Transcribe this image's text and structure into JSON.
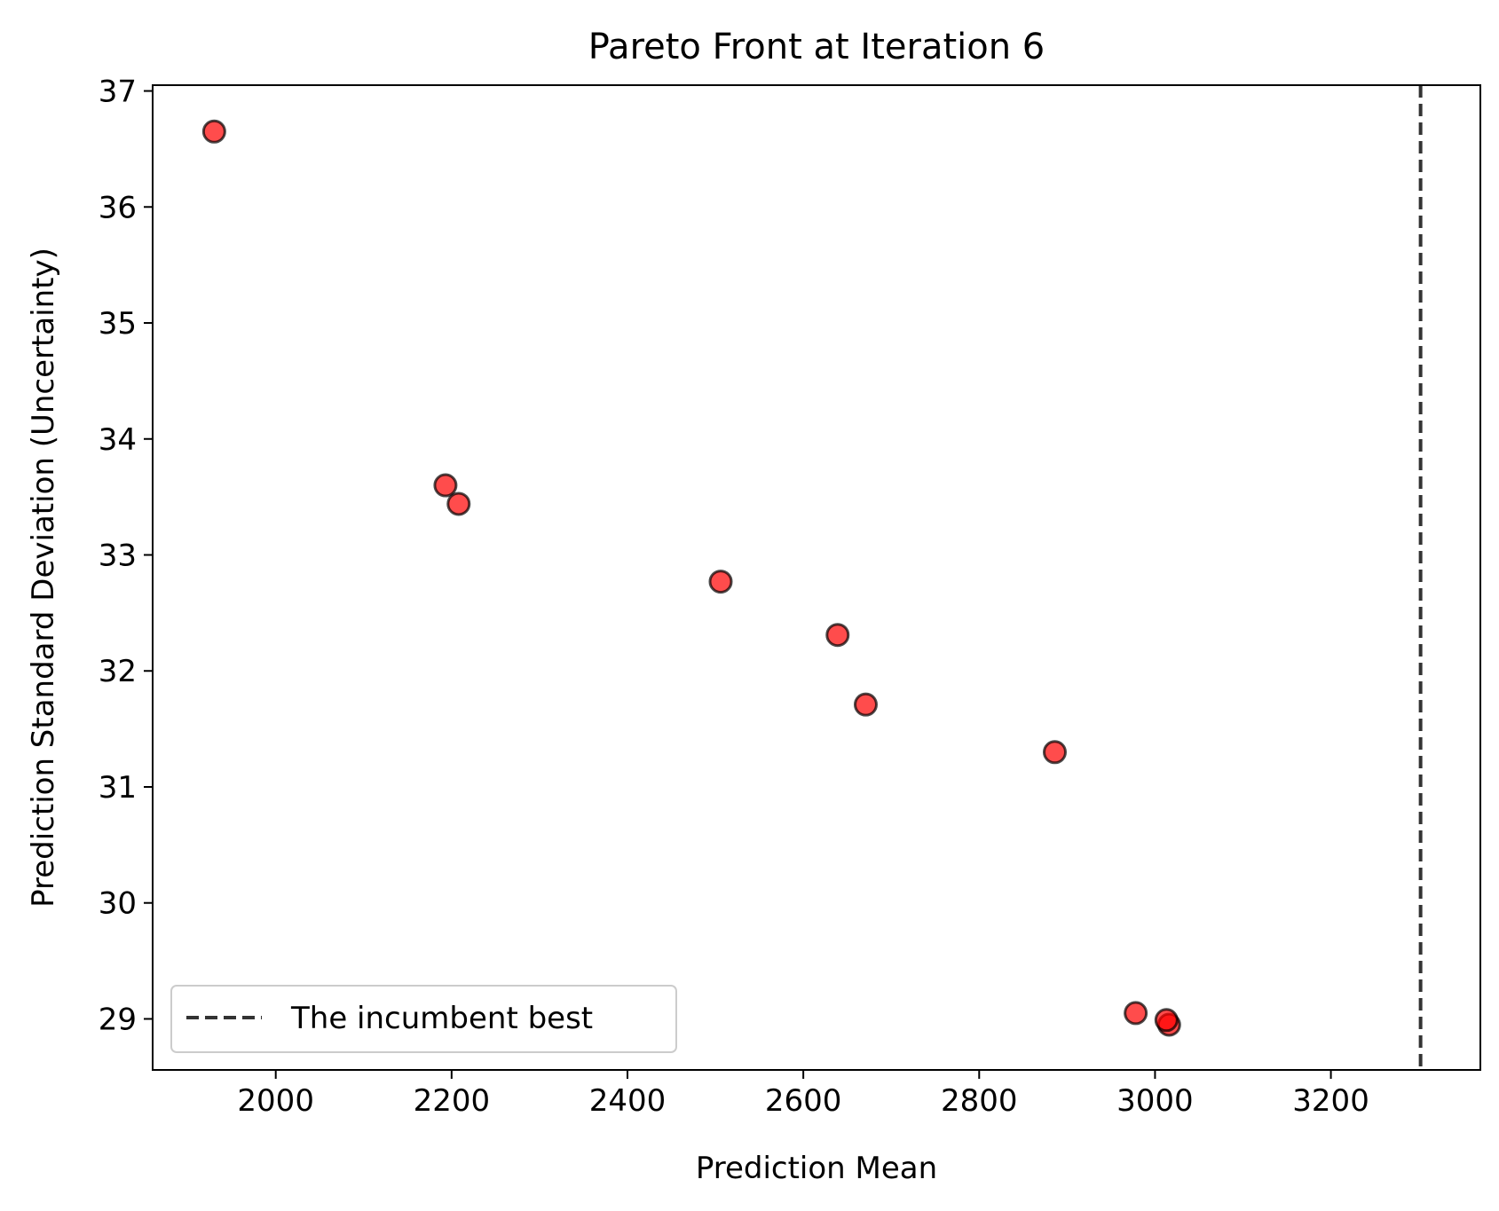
{
  "chart_data": {
    "type": "scatter",
    "title": "Pareto Front at Iteration 6",
    "xlabel": "Prediction Mean",
    "ylabel": "Prediction Standard Deviation (Uncertainty)",
    "xlim": [
      1860,
      3370
    ],
    "ylim": [
      28.56,
      37.05
    ],
    "xticks": [
      2000,
      2200,
      2400,
      2600,
      2800,
      3000,
      3200
    ],
    "yticks": [
      29,
      30,
      31,
      32,
      33,
      34,
      35,
      36,
      37
    ],
    "series": [
      {
        "marker_color": "#ff0000",
        "marker_edge_color": "#000000",
        "points": [
          {
            "x": 1930,
            "y": 36.65
          },
          {
            "x": 2193,
            "y": 33.6
          },
          {
            "x": 2208,
            "y": 33.44
          },
          {
            "x": 2506,
            "y": 32.77
          },
          {
            "x": 2639,
            "y": 32.31
          },
          {
            "x": 2671,
            "y": 31.71
          },
          {
            "x": 2886,
            "y": 31.3
          },
          {
            "x": 2978,
            "y": 29.05
          },
          {
            "x": 3016,
            "y": 28.95
          },
          {
            "x": 3013,
            "y": 28.99
          }
        ]
      }
    ],
    "reference_line": {
      "label": "The incumbent best",
      "x": 3302,
      "style": "dashed",
      "color": "#333333"
    },
    "legend_position": "lower-left",
    "grid": false
  }
}
